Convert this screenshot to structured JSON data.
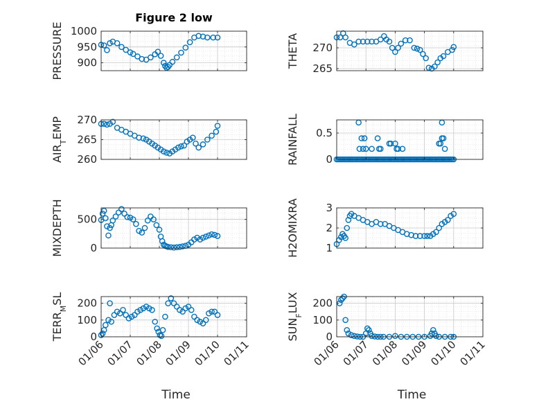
{
  "title": "Figure 2 low",
  "chart_data": [
    {
      "type": "scatter",
      "id": "pressure",
      "ylabel": {
        "main": "PRESSURE"
      },
      "ylim": [
        875,
        1000
      ],
      "yticks": [
        900,
        950,
        1000
      ],
      "xlim": [
        0,
        5
      ],
      "x_tick_values": [
        0,
        1,
        2,
        3,
        4,
        5
      ],
      "x": [
        0,
        0.1,
        0.2,
        0.3,
        0.4,
        0.55,
        0.7,
        0.85,
        1.0,
        1.1,
        1.25,
        1.4,
        1.55,
        1.7,
        1.85,
        1.95,
        2.05,
        2.15,
        2.2,
        2.25,
        2.3,
        2.35,
        2.45,
        2.6,
        2.75,
        2.9,
        3.05,
        3.2,
        3.35,
        3.5,
        3.65,
        3.85,
        4.0
      ],
      "y": [
        957,
        955,
        940,
        962,
        967,
        962,
        950,
        941,
        933,
        928,
        920,
        912,
        910,
        917,
        927,
        935,
        922,
        900,
        890,
        884,
        887,
        893,
        903,
        917,
        932,
        948,
        965,
        980,
        985,
        983,
        980,
        980,
        980
      ]
    },
    {
      "type": "scatter",
      "id": "theta",
      "ylabel": {
        "main": "THETA"
      },
      "ylim": [
        264.5,
        274
      ],
      "yticks": [
        265,
        270
      ],
      "xlim": [
        0,
        5
      ],
      "x_tick_values": [
        0,
        1,
        2,
        3,
        4,
        5
      ],
      "x": [
        0,
        0.12,
        0.22,
        0.3,
        0.45,
        0.6,
        0.75,
        0.9,
        1.05,
        1.2,
        1.35,
        1.5,
        1.62,
        1.7,
        1.8,
        1.9,
        2.0,
        2.1,
        2.2,
        2.35,
        2.5,
        2.65,
        2.75,
        2.85,
        2.95,
        3.05,
        3.15,
        3.25,
        3.35,
        3.45,
        3.55,
        3.65,
        3.8,
        3.95,
        4.0
      ],
      "y": [
        272.5,
        272.5,
        273.5,
        272.5,
        271.2,
        270.8,
        271.5,
        271.5,
        271.5,
        271.5,
        271.5,
        272,
        272.8,
        272,
        271.5,
        270,
        269,
        270,
        271,
        271.8,
        271.8,
        270,
        269.8,
        269.5,
        268.5,
        267.5,
        265.2,
        265,
        265.5,
        266.5,
        267.5,
        268,
        269,
        269.5,
        270.2
      ]
    },
    {
      "type": "scatter",
      "id": "air-temp",
      "ylabel": {
        "main": "AIR",
        "sub": "T",
        "rest": "EMP"
      },
      "ylim": [
        260,
        270
      ],
      "yticks": [
        260,
        265,
        270
      ],
      "xlim": [
        0,
        5
      ],
      "x_tick_values": [
        0,
        1,
        2,
        3,
        4,
        5
      ],
      "x": [
        0,
        0.1,
        0.2,
        0.3,
        0.4,
        0.55,
        0.7,
        0.85,
        1.0,
        1.15,
        1.3,
        1.45,
        1.55,
        1.65,
        1.75,
        1.85,
        1.95,
        2.05,
        2.15,
        2.25,
        2.35,
        2.45,
        2.55,
        2.65,
        2.75,
        2.85,
        2.95,
        3.05,
        3.15,
        3.25,
        3.35,
        3.5,
        3.65,
        3.8,
        3.95,
        4.0
      ],
      "y": [
        269,
        269,
        268.8,
        269,
        269.5,
        268,
        267.5,
        267,
        266.5,
        266,
        265.5,
        265.3,
        265,
        264.5,
        264,
        263.5,
        263,
        262.5,
        262,
        261.7,
        261.5,
        262,
        262.5,
        263,
        263.3,
        263.5,
        264.5,
        265,
        265.5,
        264,
        263,
        263.8,
        265,
        266,
        267,
        268.5
      ]
    },
    {
      "type": "scatter",
      "id": "rainfall",
      "ylabel": {
        "main": "RAINFALL"
      },
      "ylim": [
        0,
        0.75
      ],
      "yticks": [
        0,
        0.5
      ],
      "xlim": [
        0,
        5
      ],
      "x_tick_values": [
        0,
        1,
        2,
        3,
        4,
        5
      ],
      "x": [
        0,
        0.05,
        0.1,
        0.15,
        0.2,
        0.25,
        0.3,
        0.35,
        0.4,
        0.45,
        0.5,
        0.55,
        0.6,
        0.65,
        0.7,
        0.75,
        0.8,
        0.85,
        0.9,
        0.95,
        1.0,
        1.05,
        1.1,
        1.15,
        1.2,
        1.25,
        1.3,
        1.35,
        1.4,
        1.45,
        1.5,
        1.55,
        1.6,
        1.65,
        1.7,
        1.75,
        1.8,
        1.85,
        1.9,
        1.95,
        2.0,
        2.05,
        2.1,
        2.15,
        2.2,
        2.25,
        2.3,
        2.35,
        2.4,
        2.45,
        2.5,
        2.55,
        2.6,
        2.65,
        2.7,
        2.75,
        2.8,
        2.85,
        2.9,
        2.95,
        3.0,
        3.05,
        3.1,
        3.15,
        3.2,
        3.25,
        3.3,
        3.35,
        3.4,
        3.45,
        3.5,
        3.55,
        3.6,
        3.65,
        3.7,
        3.75,
        3.8,
        3.85,
        3.9,
        3.95,
        4.0,
        0.75,
        0.85,
        0.95,
        1.0,
        0.78,
        0.9,
        1.2,
        1.4,
        1.45,
        1.5,
        1.8,
        1.85,
        2.0,
        2.05,
        2.1,
        2.25,
        3.5,
        3.55,
        3.6,
        3.6,
        3.65,
        3.7
      ],
      "y": [
        0,
        0,
        0,
        0,
        0,
        0,
        0,
        0,
        0,
        0,
        0,
        0,
        0,
        0,
        0,
        0,
        0,
        0,
        0,
        0,
        0,
        0,
        0,
        0,
        0,
        0,
        0,
        0,
        0,
        0,
        0,
        0,
        0,
        0,
        0,
        0,
        0,
        0,
        0,
        0,
        0,
        0,
        0,
        0,
        0,
        0,
        0,
        0,
        0,
        0,
        0,
        0,
        0,
        0,
        0,
        0,
        0,
        0,
        0,
        0,
        0,
        0,
        0,
        0,
        0,
        0,
        0,
        0,
        0,
        0,
        0,
        0,
        0,
        0,
        0,
        0,
        0,
        0,
        0,
        0,
        0,
        0.7,
        0.4,
        0.4,
        0.2,
        0.2,
        0.2,
        0.2,
        0.4,
        0.2,
        0.2,
        0.3,
        0.3,
        0.3,
        0.2,
        0.2,
        0.2,
        0.3,
        0.3,
        0.7,
        0.4,
        0.4,
        0.2
      ]
    },
    {
      "type": "scatter",
      "id": "mixdepth",
      "ylabel": {
        "main": "MIXDEPTH"
      },
      "ylim": [
        0,
        700
      ],
      "yticks": [
        0,
        500
      ],
      "xlim": [
        0,
        5
      ],
      "x_tick_values": [
        0,
        1,
        2,
        3,
        4,
        5
      ],
      "x": [
        0,
        0.05,
        0.1,
        0.15,
        0.2,
        0.25,
        0.3,
        0.35,
        0.4,
        0.5,
        0.6,
        0.7,
        0.8,
        0.9,
        1.0,
        1.1,
        1.2,
        1.3,
        1.4,
        1.5,
        1.6,
        1.7,
        1.8,
        1.9,
        2.0,
        2.05,
        2.1,
        2.15,
        2.2,
        2.25,
        2.3,
        2.4,
        2.5,
        2.6,
        2.7,
        2.8,
        2.9,
        3.0,
        3.1,
        3.2,
        3.3,
        3.4,
        3.5,
        3.6,
        3.7,
        3.8,
        3.9,
        4.0
      ],
      "y": [
        490,
        600,
        650,
        520,
        380,
        220,
        350,
        400,
        480,
        550,
        620,
        680,
        600,
        540,
        530,
        500,
        420,
        300,
        270,
        350,
        480,
        550,
        500,
        400,
        320,
        200,
        120,
        60,
        40,
        30,
        20,
        15,
        10,
        15,
        20,
        30,
        40,
        60,
        100,
        150,
        180,
        150,
        180,
        200,
        220,
        240,
        230,
        210
      ]
    },
    {
      "type": "scatter",
      "id": "h2o-mixra",
      "ylabel": {
        "main": "H2OMIXRA"
      },
      "ylim": [
        1,
        3
      ],
      "yticks": [
        1,
        2,
        3
      ],
      "xlim": [
        0,
        5
      ],
      "x_tick_values": [
        0,
        1,
        2,
        3,
        4,
        5
      ],
      "x": [
        0,
        0.08,
        0.15,
        0.2,
        0.25,
        0.3,
        0.35,
        0.4,
        0.45,
        0.5,
        0.6,
        0.75,
        0.9,
        1.05,
        1.2,
        1.35,
        1.5,
        1.65,
        1.8,
        1.95,
        2.1,
        2.25,
        2.4,
        2.55,
        2.7,
        2.85,
        3.0,
        3.1,
        3.2,
        3.3,
        3.4,
        3.5,
        3.6,
        3.7,
        3.8,
        3.9,
        4.0
      ],
      "y": [
        1.2,
        1.4,
        1.55,
        1.7,
        1.6,
        1.5,
        2.0,
        2.4,
        2.6,
        2.7,
        2.6,
        2.5,
        2.4,
        2.3,
        2.2,
        2.3,
        2.2,
        2.2,
        2.1,
        2.0,
        1.9,
        1.8,
        1.7,
        1.65,
        1.6,
        1.6,
        1.6,
        1.6,
        1.6,
        1.7,
        1.8,
        2.0,
        2.2,
        2.3,
        2.4,
        2.6,
        2.7
      ]
    },
    {
      "type": "scatter",
      "id": "terr-msl",
      "ylabel": {
        "main": "TERR",
        "sub": "M",
        "rest": "SL"
      },
      "ylim": [
        0,
        240
      ],
      "yticks": [
        0,
        100,
        200
      ],
      "xlim": [
        0,
        5
      ],
      "x_tick_values": [
        0,
        1,
        2,
        3,
        4,
        5
      ],
      "x_tick_labels": [
        "01/06",
        "01/07",
        "01/08",
        "01/09",
        "01/10",
        "01/11"
      ],
      "xlabel": "Time",
      "x": [
        0,
        0.05,
        0.1,
        0.15,
        0.25,
        0.3,
        0.35,
        0.45,
        0.55,
        0.65,
        0.75,
        0.85,
        0.95,
        1.05,
        1.15,
        1.25,
        1.35,
        1.45,
        1.55,
        1.65,
        1.75,
        1.85,
        1.92,
        1.97,
        2.02,
        2.07,
        2.12,
        2.2,
        2.3,
        2.4,
        2.5,
        2.6,
        2.7,
        2.8,
        2.9,
        3.0,
        3.1,
        3.2,
        3.3,
        3.4,
        3.5,
        3.6,
        3.7,
        3.8,
        3.9,
        4.0
      ],
      "y": [
        10,
        20,
        40,
        70,
        100,
        200,
        90,
        130,
        150,
        140,
        160,
        130,
        110,
        120,
        130,
        150,
        160,
        170,
        180,
        170,
        160,
        90,
        50,
        30,
        10,
        5,
        40,
        120,
        200,
        230,
        200,
        180,
        160,
        150,
        170,
        180,
        160,
        120,
        100,
        90,
        80,
        100,
        140,
        150,
        150,
        130
      ]
    },
    {
      "type": "scatter",
      "id": "sun-flux",
      "ylabel": {
        "main": "SUN",
        "sub": "F",
        "rest": "LUX"
      },
      "ylim": [
        0,
        240
      ],
      "yticks": [
        0,
        100,
        200
      ],
      "xlim": [
        0,
        5
      ],
      "x_tick_values": [
        0,
        1,
        2,
        3,
        4,
        5
      ],
      "x_tick_labels": [
        "01/06",
        "01/07",
        "01/08",
        "01/09",
        "01/10",
        "01/11"
      ],
      "xlabel": "Time",
      "x": [
        0.1,
        0.15,
        0.2,
        0.25,
        0.3,
        0.35,
        0.4,
        0.5,
        0.6,
        0.7,
        0.8,
        0.9,
        1.0,
        1.05,
        1.1,
        1.15,
        1.2,
        1.3,
        1.4,
        1.5,
        1.6,
        1.8,
        2.0,
        2.2,
        2.4,
        2.6,
        2.8,
        3.0,
        3.2,
        3.25,
        3.3,
        3.35,
        3.4,
        3.5,
        3.7,
        3.9,
        4.0
      ],
      "y": [
        200,
        220,
        230,
        240,
        100,
        40,
        20,
        10,
        5,
        2,
        0,
        0,
        20,
        50,
        40,
        20,
        5,
        2,
        0,
        0,
        0,
        0,
        5,
        0,
        0,
        0,
        0,
        0,
        5,
        20,
        40,
        20,
        5,
        0,
        0,
        0,
        0
      ]
    }
  ]
}
